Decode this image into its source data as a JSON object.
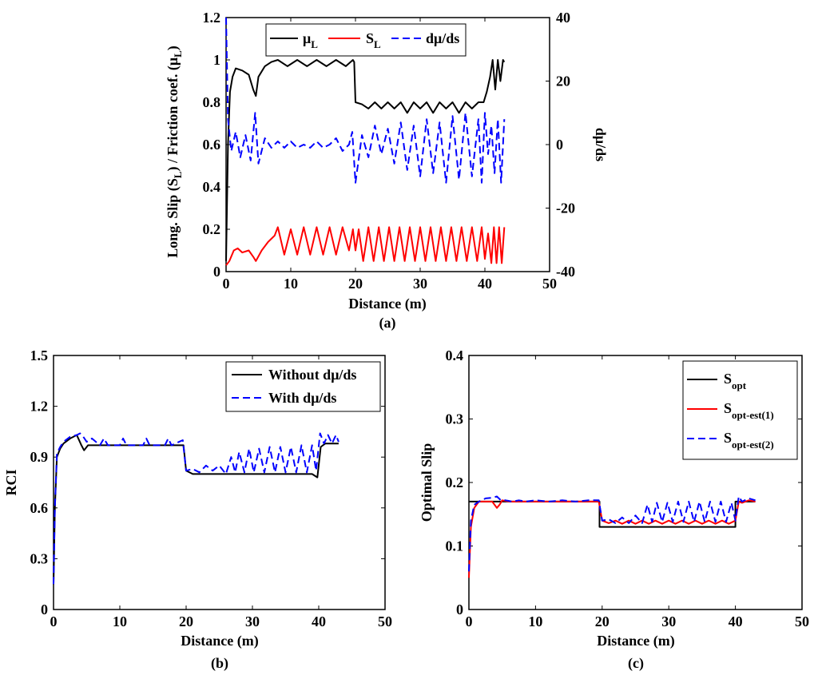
{
  "chart_data": [
    {
      "panel": "a",
      "caption": "(a)",
      "type": "line",
      "xlabel": "Distance (m)",
      "ylabel_main": "Long. Slip (S",
      "ylabel_sub1": "L",
      "ylabel_mid": ") / Friction coef. (μ",
      "ylabel_sub2": "L",
      "ylabel_end": ")",
      "y2label": "dμ/ds",
      "xlim": [
        0,
        50
      ],
      "ylim": [
        0,
        1.2
      ],
      "y2lim": [
        -40,
        40
      ],
      "xticks": [
        "0",
        "10",
        "20",
        "30",
        "40",
        "50"
      ],
      "yticks": [
        "0",
        "0.2",
        "0.4",
        "0.6",
        "0.8",
        "1",
        "1.2"
      ],
      "y2ticks": [
        "-40",
        "-20",
        "0",
        "20",
        "40"
      ],
      "xtick_values": [
        0,
        10,
        20,
        30,
        40,
        50
      ],
      "ytick_values": [
        0,
        0.2,
        0.4,
        0.6,
        0.8,
        1.0,
        1.2
      ],
      "y2tick_values": [
        -40,
        -20,
        0,
        20,
        40
      ],
      "legend": [
        {
          "main": "μ",
          "sub": "L",
          "color": "#000000",
          "dash": "solid"
        },
        {
          "main": "S",
          "sub": "L",
          "color": "#ff0000",
          "dash": "solid"
        },
        {
          "main": "dμ/ds",
          "sub": "",
          "color": "#0000ff",
          "dash": "dashed"
        }
      ],
      "series": [
        {
          "name": "mu_L",
          "color": "#000000",
          "dash": "solid",
          "axis": "left",
          "x": [
            0,
            0.3,
            0.6,
            1.0,
            1.5,
            2.5,
            3.5,
            4.2,
            4.6,
            5.0,
            6.0,
            7.0,
            8.0,
            9.5,
            11.0,
            12.5,
            14.0,
            15.5,
            17.0,
            18.5,
            19.6,
            19.8,
            20,
            21,
            22,
            23,
            24,
            25,
            26,
            27,
            28,
            29,
            30,
            31,
            32,
            33,
            34,
            35,
            36,
            37,
            38,
            39,
            39.8,
            40.3,
            40.8,
            41.2,
            41.6,
            42.0,
            42.4,
            42.8,
            43.0
          ],
          "y": [
            0.05,
            0.6,
            0.85,
            0.92,
            0.96,
            0.95,
            0.93,
            0.86,
            0.83,
            0.92,
            0.97,
            0.99,
            1.0,
            0.97,
            1.0,
            0.97,
            1.0,
            0.97,
            1.0,
            0.97,
            1.0,
            0.99,
            0.8,
            0.79,
            0.77,
            0.8,
            0.77,
            0.8,
            0.77,
            0.8,
            0.75,
            0.8,
            0.77,
            0.8,
            0.75,
            0.8,
            0.77,
            0.8,
            0.75,
            0.8,
            0.77,
            0.8,
            0.8,
            0.85,
            0.92,
            1.0,
            0.86,
            1.0,
            0.9,
            1.0,
            0.99
          ]
        },
        {
          "name": "S_L",
          "color": "#ff0000",
          "dash": "solid",
          "axis": "left",
          "x": [
            0,
            0.5,
            1.2,
            1.8,
            2.5,
            3.5,
            4.2,
            4.6,
            5.5,
            6.5,
            7.5,
            8.0,
            9.0,
            10,
            11,
            12,
            13,
            14,
            15,
            16,
            17,
            18,
            19,
            19.6,
            20,
            20.5,
            21.2,
            22,
            22.8,
            23.6,
            24.4,
            25.2,
            26,
            26.8,
            27.6,
            28.4,
            29.2,
            30,
            30.8,
            31.6,
            32.4,
            33.2,
            34,
            34.8,
            35.6,
            36.4,
            37.2,
            38,
            38.8,
            39.5,
            40.0,
            40.5,
            41.0,
            41.4,
            41.8,
            42.2,
            42.6,
            43.0
          ],
          "y": [
            0.03,
            0.05,
            0.1,
            0.11,
            0.09,
            0.1,
            0.07,
            0.05,
            0.1,
            0.14,
            0.17,
            0.21,
            0.08,
            0.2,
            0.08,
            0.21,
            0.08,
            0.21,
            0.08,
            0.21,
            0.08,
            0.21,
            0.1,
            0.2,
            0.1,
            0.2,
            0.05,
            0.21,
            0.05,
            0.21,
            0.05,
            0.21,
            0.05,
            0.21,
            0.05,
            0.21,
            0.05,
            0.21,
            0.05,
            0.21,
            0.05,
            0.21,
            0.05,
            0.21,
            0.05,
            0.21,
            0.05,
            0.21,
            0.05,
            0.21,
            0.06,
            0.18,
            0.04,
            0.21,
            0.04,
            0.21,
            0.04,
            0.21
          ]
        },
        {
          "name": "dmu/ds",
          "color": "#0000ff",
          "dash": "dashed",
          "axis": "right",
          "x": [
            0,
            0.3,
            0.8,
            1.5,
            2.2,
            3.0,
            3.8,
            4.5,
            5.0,
            6,
            7,
            8,
            9,
            10,
            11,
            12,
            13,
            14,
            15,
            16,
            17,
            18,
            19,
            19.5,
            20,
            21,
            22,
            23,
            24,
            25,
            26,
            27,
            28,
            29,
            30,
            31,
            32,
            33,
            34,
            35,
            36,
            37,
            38,
            39,
            39.5,
            40,
            40.5,
            41,
            41.5,
            42,
            42.5,
            43
          ],
          "y": [
            40,
            8,
            -2,
            4,
            -4,
            3,
            -5,
            10,
            -6,
            2,
            -1,
            1,
            -1,
            1,
            -1,
            0,
            -1,
            1,
            -1,
            0,
            2,
            -2,
            0,
            4,
            -12,
            3,
            -4,
            6,
            -3,
            5,
            -6,
            7,
            -8,
            6,
            -10,
            8,
            -9,
            7,
            -12,
            9,
            -11,
            10,
            -10,
            8,
            -12,
            10,
            -3,
            6,
            -9,
            8,
            -12,
            8
          ]
        }
      ]
    },
    {
      "panel": "b",
      "caption": "(b)",
      "type": "line",
      "xlabel": "Distance (m)",
      "ylabel": "RCI",
      "xlim": [
        0,
        50
      ],
      "ylim": [
        0,
        1.5
      ],
      "xticks": [
        "0",
        "10",
        "20",
        "30",
        "40",
        "50"
      ],
      "yticks": [
        "0",
        "0.3",
        "0.6",
        "0.9",
        "1.2",
        "1.5"
      ],
      "xtick_values": [
        0,
        10,
        20,
        30,
        40,
        50
      ],
      "ytick_values": [
        0,
        0.3,
        0.6,
        0.9,
        1.2,
        1.5
      ],
      "legend": [
        {
          "main": "Without dμ/ds",
          "sub": "",
          "color": "#000000",
          "dash": "solid"
        },
        {
          "main": "With dμ/ds",
          "sub": "",
          "color": "#0000ff",
          "dash": "dashed"
        }
      ],
      "series": [
        {
          "name": "Without dmu/ds",
          "color": "#000000",
          "dash": "solid",
          "x": [
            0,
            0.2,
            0.5,
            1.0,
            1.5,
            2.5,
            3.5,
            4.2,
            4.6,
            5.2,
            6,
            8,
            10,
            12,
            14,
            16,
            18,
            19.6,
            20,
            21,
            23,
            25,
            27,
            29,
            31,
            33,
            35,
            37,
            39,
            39.8,
            40.3,
            41,
            42,
            43
          ],
          "y": [
            0.15,
            0.6,
            0.9,
            0.95,
            0.98,
            1.01,
            1.03,
            0.97,
            0.94,
            0.97,
            0.97,
            0.97,
            0.97,
            0.97,
            0.97,
            0.97,
            0.97,
            0.97,
            0.82,
            0.8,
            0.8,
            0.8,
            0.8,
            0.8,
            0.8,
            0.8,
            0.8,
            0.8,
            0.8,
            0.78,
            0.96,
            0.98,
            0.98,
            0.98
          ]
        },
        {
          "name": "With dmu/ds",
          "color": "#0000ff",
          "dash": "dashed",
          "x": [
            0,
            0.2,
            0.5,
            1.0,
            1.5,
            2.5,
            3.5,
            4.0,
            4.5,
            5.0,
            5.8,
            7.0,
            7.6,
            8.2,
            10,
            10.5,
            11,
            13.5,
            14,
            14.5,
            16.8,
            17.3,
            17.8,
            19.5,
            20,
            21,
            22,
            23,
            24,
            25,
            26,
            26.8,
            27.4,
            28,
            28.8,
            29.5,
            30.2,
            31,
            31.8,
            32.6,
            33.4,
            34.2,
            35,
            35.8,
            36.6,
            37.4,
            38.2,
            39,
            39.6,
            40.2,
            40.8,
            41.4,
            42,
            42.6,
            43
          ],
          "y": [
            0.15,
            0.6,
            0.92,
            0.96,
            0.99,
            1.02,
            1.03,
            1.04,
            1.02,
            0.99,
            1.01,
            0.97,
            1.01,
            0.97,
            0.97,
            1.01,
            0.97,
            0.97,
            1.01,
            0.97,
            0.97,
            1.01,
            0.97,
            1.0,
            0.82,
            0.83,
            0.81,
            0.85,
            0.82,
            0.85,
            0.8,
            0.9,
            0.81,
            0.93,
            0.81,
            0.95,
            0.81,
            0.95,
            0.81,
            0.96,
            0.81,
            0.96,
            0.81,
            0.96,
            0.81,
            0.97,
            0.81,
            0.97,
            0.82,
            1.04,
            0.98,
            1.03,
            0.98,
            1.03,
            0.99
          ]
        }
      ]
    },
    {
      "panel": "c",
      "caption": "(c)",
      "type": "line",
      "xlabel": "Distance (m)",
      "ylabel": "Optimal Slip",
      "xlim": [
        0,
        50
      ],
      "ylim": [
        0,
        0.4
      ],
      "xticks": [
        "0",
        "10",
        "20",
        "30",
        "40",
        "50"
      ],
      "yticks": [
        "0",
        "0.1",
        "0.2",
        "0.3",
        "0.4"
      ],
      "xtick_values": [
        0,
        10,
        20,
        30,
        40,
        50
      ],
      "ytick_values": [
        0,
        0.1,
        0.2,
        0.3,
        0.4
      ],
      "legend": [
        {
          "main": "S",
          "sub": "opt",
          "color": "#000000",
          "dash": "solid"
        },
        {
          "main": "S",
          "sub": "opt-est(1)",
          "color": "#ff0000",
          "dash": "solid"
        },
        {
          "main": "S",
          "sub": "opt-est(2)",
          "color": "#0000ff",
          "dash": "dashed"
        }
      ],
      "series": [
        {
          "name": "S_opt",
          "color": "#000000",
          "dash": "solid",
          "x": [
            0,
            19.6,
            19.6,
            40,
            40,
            43
          ],
          "y": [
            0.17,
            0.17,
            0.13,
            0.13,
            0.17,
            0.17
          ]
        },
        {
          "name": "S_opt-est(1)",
          "color": "#ff0000",
          "dash": "solid",
          "x": [
            0,
            0.3,
            0.8,
            1.5,
            2.5,
            3.5,
            4.2,
            4.6,
            5.0,
            6,
            8,
            10,
            12,
            14,
            16,
            18,
            19.5,
            20,
            21,
            22,
            23,
            24,
            25,
            26,
            27,
            28,
            29,
            30,
            31,
            32,
            33,
            34,
            35,
            36,
            37,
            38,
            39,
            40,
            40.5,
            41,
            42,
            43
          ],
          "y": [
            0.05,
            0.13,
            0.16,
            0.17,
            0.17,
            0.17,
            0.16,
            0.165,
            0.172,
            0.17,
            0.17,
            0.17,
            0.17,
            0.17,
            0.17,
            0.17,
            0.17,
            0.14,
            0.136,
            0.14,
            0.135,
            0.14,
            0.135,
            0.14,
            0.135,
            0.14,
            0.135,
            0.14,
            0.135,
            0.14,
            0.135,
            0.14,
            0.135,
            0.14,
            0.135,
            0.14,
            0.135,
            0.14,
            0.17,
            0.168,
            0.172,
            0.17
          ]
        },
        {
          "name": "S_opt-est(2)",
          "color": "#0000ff",
          "dash": "dashed",
          "x": [
            0,
            0.3,
            0.8,
            1.5,
            2.5,
            3.5,
            4.2,
            4.8,
            5.5,
            6.5,
            7.5,
            8.5,
            10,
            12,
            14,
            16,
            18,
            19.5,
            20,
            21,
            22,
            23,
            24,
            25,
            26,
            26.8,
            27.5,
            28.2,
            29,
            29.8,
            30.6,
            31.4,
            32.2,
            33,
            33.8,
            34.6,
            35.4,
            36.2,
            37,
            37.8,
            38.6,
            39.4,
            40,
            40.5,
            41,
            42,
            43
          ],
          "y": [
            0.06,
            0.14,
            0.165,
            0.17,
            0.175,
            0.176,
            0.178,
            0.172,
            0.172,
            0.17,
            0.172,
            0.17,
            0.172,
            0.17,
            0.172,
            0.17,
            0.172,
            0.172,
            0.14,
            0.142,
            0.136,
            0.145,
            0.136,
            0.148,
            0.136,
            0.165,
            0.138,
            0.168,
            0.138,
            0.168,
            0.138,
            0.17,
            0.138,
            0.17,
            0.138,
            0.17,
            0.138,
            0.17,
            0.138,
            0.17,
            0.138,
            0.168,
            0.14,
            0.178,
            0.17,
            0.175,
            0.172
          ]
        }
      ]
    }
  ]
}
